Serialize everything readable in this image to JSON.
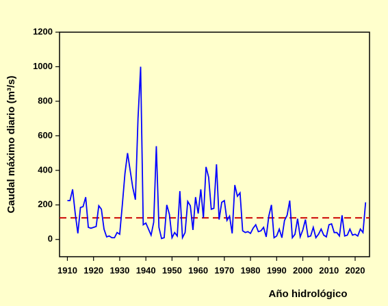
{
  "chart_data": {
    "type": "line",
    "x_label": "Año hidrológico",
    "y_label": "Caudal máximo diario (m³/s)",
    "x": [
      1910,
      1911,
      1912,
      1913,
      1914,
      1915,
      1916,
      1917,
      1918,
      1919,
      1920,
      1921,
      1922,
      1923,
      1924,
      1925,
      1926,
      1927,
      1928,
      1929,
      1930,
      1931,
      1932,
      1933,
      1934,
      1935,
      1936,
      1937,
      1938,
      1939,
      1940,
      1941,
      1942,
      1943,
      1944,
      1945,
      1946,
      1947,
      1948,
      1949,
      1950,
      1951,
      1952,
      1953,
      1954,
      1955,
      1956,
      1957,
      1958,
      1959,
      1960,
      1961,
      1962,
      1963,
      1964,
      1965,
      1966,
      1967,
      1968,
      1969,
      1970,
      1971,
      1972,
      1973,
      1974,
      1975,
      1976,
      1977,
      1978,
      1979,
      1980,
      1981,
      1982,
      1983,
      1984,
      1985,
      1986,
      1987,
      1988,
      1989,
      1990,
      1991,
      1992,
      1993,
      1994,
      1995,
      1996,
      1997,
      1998,
      1999,
      2000,
      2001,
      2002,
      2003,
      2004,
      2005,
      2006,
      2007,
      2008,
      2009,
      2010,
      2011,
      2012,
      2013,
      2014,
      2015,
      2016,
      2017,
      2018,
      2019,
      2020,
      2021,
      2022,
      2023,
      2024
    ],
    "series": [
      {
        "color": "#0000ff",
        "values": [
          225,
          225,
          290,
          150,
          35,
          185,
          190,
          245,
          70,
          65,
          70,
          75,
          195,
          175,
          60,
          15,
          20,
          10,
          10,
          40,
          30,
          200,
          380,
          500,
          400,
          300,
          230,
          700,
          1000,
          85,
          95,
          60,
          25,
          100,
          540,
          70,
          5,
          10,
          200,
          145,
          10,
          40,
          20,
          280,
          10,
          40,
          220,
          195,
          55,
          245,
          150,
          290,
          125,
          420,
          360,
          175,
          180,
          435,
          115,
          215,
          225,
          110,
          135,
          35,
          315,
          250,
          270,
          50,
          40,
          45,
          35,
          65,
          85,
          45,
          50,
          70,
          15,
          135,
          200,
          10,
          20,
          60,
          10,
          110,
          140,
          225,
          10,
          30,
          120,
          15,
          55,
          115,
          15,
          20,
          70,
          10,
          30,
          60,
          25,
          15,
          85,
          90,
          40,
          40,
          20,
          140,
          20,
          25,
          60,
          25,
          30,
          20,
          60,
          40,
          215
        ]
      }
    ],
    "reference_line": 125,
    "reference_color": "#cc0000",
    "xlim": [
      1907,
      2025.5
    ],
    "ylim": [
      -100,
      1200
    ],
    "xticks": [
      1910,
      1920,
      1930,
      1940,
      1950,
      1960,
      1970,
      1980,
      1990,
      2000,
      2010,
      2020
    ],
    "yticks": [
      0,
      200,
      400,
      600,
      800,
      1000,
      1200
    ]
  }
}
